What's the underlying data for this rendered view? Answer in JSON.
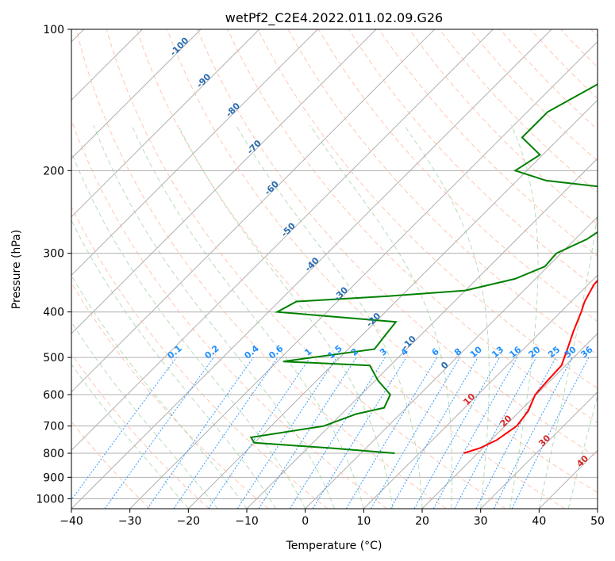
{
  "chart_data": {
    "type": "line",
    "title": "wetPf2_C2E4.2022.011.02.09.G26",
    "xlabel": "Temperature (°C)",
    "ylabel": "Pressure (hPa)",
    "xlim": [
      -40,
      50
    ],
    "ylim": [
      1050,
      100
    ],
    "x_ticks": [
      -40,
      -30,
      -20,
      -10,
      0,
      10,
      20,
      30,
      40,
      50
    ],
    "x_tick_labels": [
      "−40",
      "−30",
      "−20",
      "−10",
      "0",
      "10",
      "20",
      "30",
      "40",
      "50"
    ],
    "y_ticks": [
      100,
      200,
      300,
      400,
      500,
      600,
      700,
      800,
      900,
      1000
    ],
    "y_tick_labels": [
      "100",
      "200",
      "300",
      "400",
      "500",
      "600",
      "700",
      "800",
      "900",
      "1000"
    ],
    "skew_note": "skew-T log-p diagram",
    "series": [
      {
        "name": "temperature",
        "color": "#ff0000",
        "points": [
          [
            800,
            17.6
          ],
          [
            780,
            19.5
          ],
          [
            750,
            21.0
          ],
          [
            700,
            22.0
          ],
          [
            650,
            21.4
          ],
          [
            600,
            19.8
          ],
          [
            560,
            19.5
          ],
          [
            520,
            19.3
          ],
          [
            480,
            17.5
          ],
          [
            440,
            15.5
          ],
          [
            400,
            13.5
          ],
          [
            380,
            12.3
          ],
          [
            350,
            11.0
          ],
          [
            310,
            10.5
          ],
          [
            280,
            8.0
          ],
          [
            240,
            4.0
          ],
          [
            220,
            3.4
          ],
          [
            205,
            5.5
          ],
          [
            180,
            5.2
          ],
          [
            150,
            3.8
          ],
          [
            125,
            2.8
          ],
          [
            110,
            1.5
          ],
          [
            100,
            0.5
          ]
        ]
      },
      {
        "name": "dewpoint",
        "color": "#008000",
        "points": [
          [
            800,
            5.8
          ],
          [
            780,
            -6.0
          ],
          [
            760,
            -20.0
          ],
          [
            740,
            -21.5
          ],
          [
            700,
            -11.0
          ],
          [
            660,
            -7.5
          ],
          [
            640,
            -3.8
          ],
          [
            600,
            -5.0
          ],
          [
            560,
            -9.5
          ],
          [
            520,
            -13.5
          ],
          [
            510,
            -29.0
          ],
          [
            480,
            -15.5
          ],
          [
            450,
            -16.0
          ],
          [
            420,
            -16.5
          ],
          [
            400,
            -38.5
          ],
          [
            380,
            -37.0
          ],
          [
            370,
            -22.0
          ],
          [
            360,
            -10.0
          ],
          [
            340,
            -3.5
          ],
          [
            320,
            -0.5
          ],
          [
            300,
            -0.8
          ],
          [
            280,
            2.0
          ],
          [
            250,
            4.0
          ],
          [
            220,
            1.0
          ],
          [
            210,
            -15.0
          ],
          [
            200,
            -22.0
          ],
          [
            185,
            -20.5
          ],
          [
            170,
            -26.5
          ],
          [
            150,
            -26.5
          ],
          [
            130,
            -22.5
          ],
          [
            115,
            -17.5
          ],
          [
            100,
            -10.8
          ]
        ]
      }
    ],
    "mixing_ratio_labels": [
      "0.1",
      "0.2",
      "0.4",
      "0.6",
      "1",
      "1.5",
      "2",
      "3",
      "4",
      "6",
      "8",
      "10",
      "13",
      "16",
      "20",
      "25",
      "30",
      "36"
    ],
    "dry_adiabat_labels": [
      "-100",
      "-90",
      "-80",
      "-70",
      "-60",
      "-50",
      "-40",
      "-30",
      "-20",
      "-10",
      "0"
    ],
    "moist_adiabat_labels": [
      "10",
      "20",
      "30",
      "40"
    ]
  }
}
